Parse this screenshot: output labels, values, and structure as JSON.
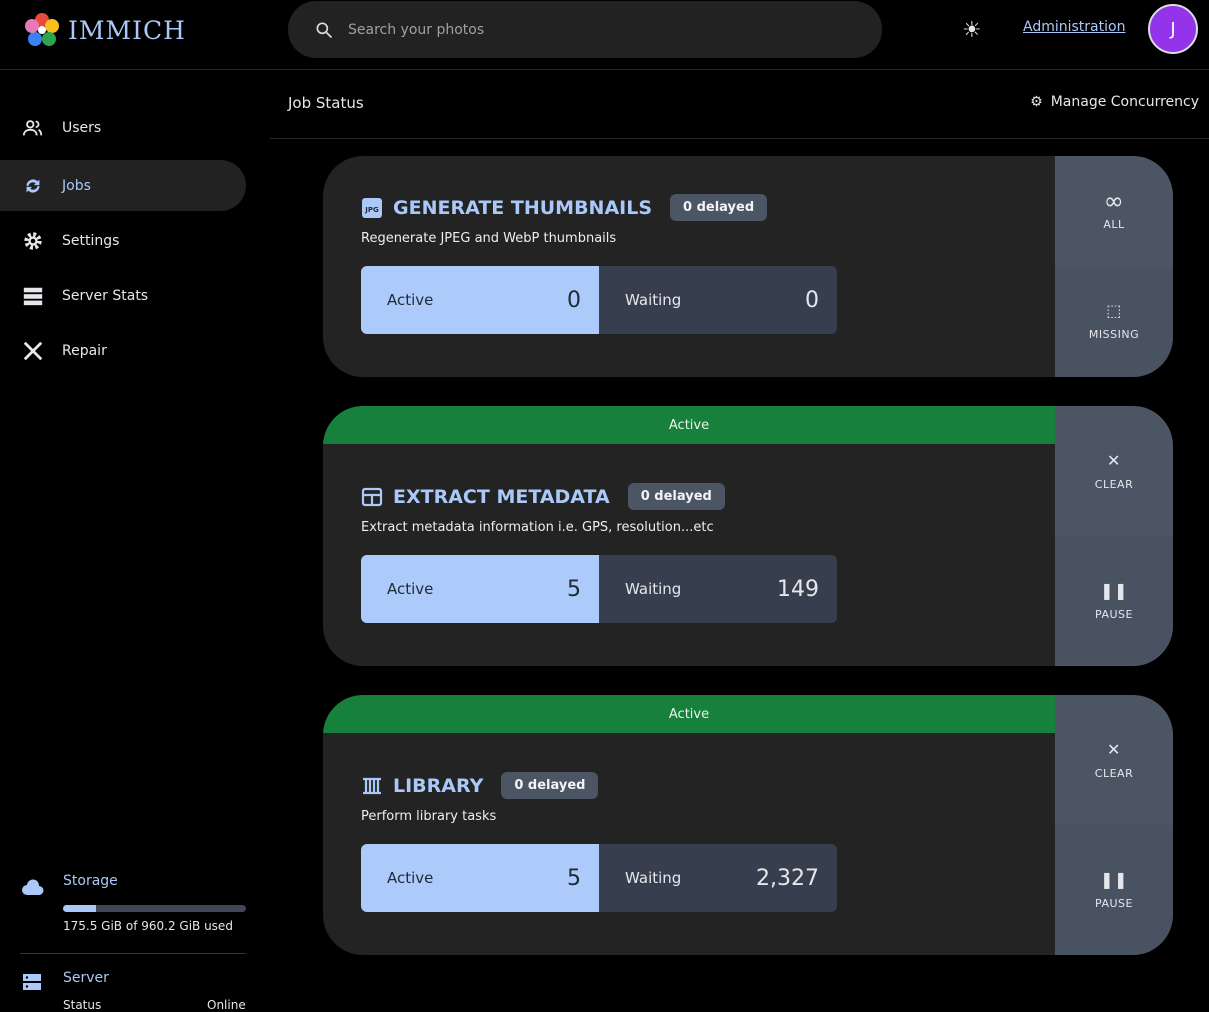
{
  "header": {
    "logo_text": "IMMICH",
    "search_placeholder": "Search your photos",
    "admin_link": "Administration",
    "avatar_initial": "J"
  },
  "sidebar": {
    "items": [
      {
        "label": "Users",
        "icon": "users-icon"
      },
      {
        "label": "Jobs",
        "icon": "sync-icon",
        "active": true
      },
      {
        "label": "Settings",
        "icon": "gear-icon"
      },
      {
        "label": "Server Stats",
        "icon": "server-icon"
      },
      {
        "label": "Repair",
        "icon": "tools-icon"
      }
    ],
    "storage": {
      "label": "Storage",
      "usage": "175.5 GiB of 960.2 GiB used",
      "used_fraction": 0.183
    },
    "server": {
      "label": "Server",
      "status_label": "Status",
      "status_value": "Online"
    }
  },
  "page": {
    "title": "Job Status",
    "manage_concurrency": "Manage Concurrency"
  },
  "colors": {
    "accent": "#aac8f8",
    "active_banner": "#16803c",
    "avatar": "#9333ea"
  },
  "jobs": [
    {
      "title": "GENERATE THUMBNAILS",
      "icon": "jpg-icon",
      "delayed": "0 delayed",
      "description": "Regenerate JPEG and WebP thumbnails",
      "active_label": "Active",
      "active": "0",
      "waiting_label": "Waiting",
      "waiting": "0",
      "buttons": [
        "ALL",
        "MISSING"
      ]
    },
    {
      "banner": "Active",
      "title": "EXTRACT METADATA",
      "icon": "table-icon",
      "delayed": "0 delayed",
      "description": "Extract metadata information i.e. GPS, resolution...etc",
      "active_label": "Active",
      "active": "5",
      "waiting_label": "Waiting",
      "waiting": "149",
      "buttons": [
        "CLEAR",
        "PAUSE"
      ]
    },
    {
      "banner": "Active",
      "title": "LIBRARY",
      "icon": "library-icon",
      "delayed": "0 delayed",
      "description": "Perform library tasks",
      "active_label": "Active",
      "active": "5",
      "waiting_label": "Waiting",
      "waiting": "2,327",
      "buttons": [
        "CLEAR",
        "PAUSE"
      ]
    }
  ]
}
